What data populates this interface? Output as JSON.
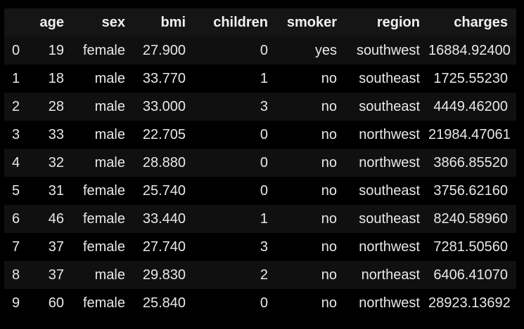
{
  "dataframe": {
    "index_header": "",
    "columns": [
      "age",
      "sex",
      "bmi",
      "children",
      "smoker",
      "region",
      "charges"
    ],
    "rows": [
      {
        "index": "0",
        "age": "19",
        "sex": "female",
        "bmi": "27.900",
        "children": "0",
        "smoker": "yes",
        "region": "southwest",
        "charges": "16884.92400"
      },
      {
        "index": "1",
        "age": "18",
        "sex": "male",
        "bmi": "33.770",
        "children": "1",
        "smoker": "no",
        "region": "southeast",
        "charges": "1725.55230"
      },
      {
        "index": "2",
        "age": "28",
        "sex": "male",
        "bmi": "33.000",
        "children": "3",
        "smoker": "no",
        "region": "southeast",
        "charges": "4449.46200"
      },
      {
        "index": "3",
        "age": "33",
        "sex": "male",
        "bmi": "22.705",
        "children": "0",
        "smoker": "no",
        "region": "northwest",
        "charges": "21984.47061"
      },
      {
        "index": "4",
        "age": "32",
        "sex": "male",
        "bmi": "28.880",
        "children": "0",
        "smoker": "no",
        "region": "northwest",
        "charges": "3866.85520"
      },
      {
        "index": "5",
        "age": "31",
        "sex": "female",
        "bmi": "25.740",
        "children": "0",
        "smoker": "no",
        "region": "southeast",
        "charges": "3756.62160"
      },
      {
        "index": "6",
        "age": "46",
        "sex": "female",
        "bmi": "33.440",
        "children": "1",
        "smoker": "no",
        "region": "southeast",
        "charges": "8240.58960"
      },
      {
        "index": "7",
        "age": "37",
        "sex": "female",
        "bmi": "27.740",
        "children": "3",
        "smoker": "no",
        "region": "northwest",
        "charges": "7281.50560"
      },
      {
        "index": "8",
        "age": "37",
        "sex": "male",
        "bmi": "29.830",
        "children": "2",
        "smoker": "no",
        "region": "northeast",
        "charges": "6406.41070"
      },
      {
        "index": "9",
        "age": "60",
        "sex": "female",
        "bmi": "25.840",
        "children": "0",
        "smoker": "no",
        "region": "northwest",
        "charges": "28923.13692"
      }
    ]
  }
}
